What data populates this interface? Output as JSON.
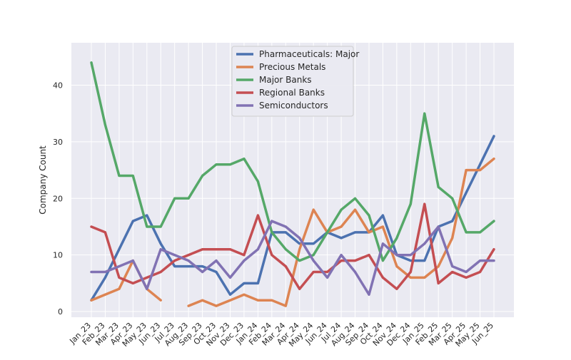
{
  "chart_data": {
    "type": "line",
    "title": "",
    "xlabel": "",
    "ylabel": "Company Count",
    "ylim": [
      -1,
      47.5
    ],
    "yticks": [
      0,
      10,
      20,
      30,
      40
    ],
    "grid": true,
    "legend_position": "top-center",
    "background": "#EAEAF2",
    "categories": [
      "Jan_23",
      "Feb_23",
      "Mar_23",
      "Apr_23",
      "May_23",
      "Jun_23",
      "Jul_23",
      "Aug_23",
      "Sep_23",
      "Oct_23",
      "Nov_23",
      "Dec_23",
      "Jan_24",
      "Feb_24",
      "Mar_24",
      "Apr_24",
      "May_24",
      "Jun_24",
      "Jul_24",
      "Aug_24",
      "Sep_24",
      "Oct_24",
      "Nov_24",
      "Dec_24",
      "Jan_25",
      "Feb_25",
      "Mar_25",
      "Apr_25",
      "May_25",
      "Jun_25"
    ],
    "series": [
      {
        "name": "Pharmaceuticals: Major",
        "color": "#4C72B0",
        "values": [
          2,
          6,
          11,
          16,
          17,
          12,
          8,
          8,
          8,
          7,
          3,
          5,
          5,
          14,
          14,
          12,
          12,
          14,
          13,
          14,
          14,
          17,
          10,
          9,
          9,
          15,
          16,
          21,
          26,
          31
        ]
      },
      {
        "name": "Precious Metals",
        "color": "#DD8452",
        "values": [
          2,
          3,
          4,
          9,
          4,
          2,
          null,
          1,
          2,
          1,
          2,
          3,
          2,
          2,
          1,
          11,
          18,
          14,
          15,
          18,
          14,
          15,
          8,
          6,
          6,
          8,
          13,
          25,
          25,
          27
        ]
      },
      {
        "name": "Major Banks",
        "color": "#55A868",
        "values": [
          44,
          33,
          24,
          24,
          15,
          15,
          20,
          20,
          24,
          26,
          26,
          27,
          23,
          14,
          11,
          9,
          10,
          14,
          18,
          20,
          17,
          9,
          13,
          19,
          35,
          22,
          20,
          14,
          14,
          16
        ]
      },
      {
        "name": "Regional Banks",
        "color": "#C44E52",
        "values": [
          15,
          14,
          6,
          5,
          6,
          7,
          9,
          10,
          11,
          11,
          11,
          10,
          17,
          10,
          8,
          4,
          7,
          7,
          9,
          9,
          10,
          6,
          4,
          7,
          19,
          5,
          7,
          6,
          7,
          11
        ]
      },
      {
        "name": "Semiconductors",
        "color": "#8172B3",
        "values": [
          7,
          7,
          8,
          9,
          4,
          11,
          10,
          9,
          7,
          9,
          6,
          9,
          11,
          16,
          15,
          13,
          9,
          6,
          10,
          7,
          3,
          12,
          10,
          10,
          12,
          15,
          8,
          7,
          9,
          9
        ]
      }
    ]
  }
}
